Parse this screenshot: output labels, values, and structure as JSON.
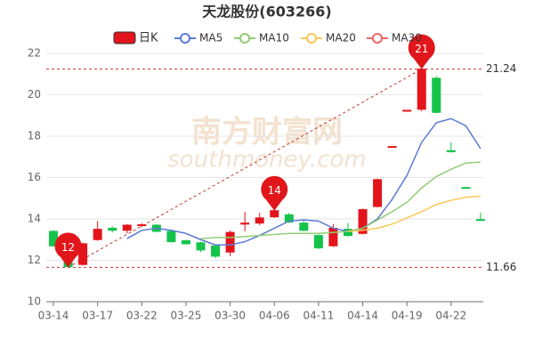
{
  "chart_data": {
    "type": "candlestick",
    "title": "天龙股份(603266)",
    "watermark": "南方财富网",
    "watermark_sub": "southmoney.com",
    "kline_name": "日K",
    "up_color": "#e3141b",
    "down_color": "#14c44a",
    "categories": [
      "03-14",
      null,
      null,
      "03-17",
      null,
      null,
      "03-22",
      null,
      null,
      "03-25",
      null,
      null,
      "03-30",
      null,
      null,
      "04-06",
      null,
      null,
      "04-11",
      null,
      null,
      "04-14",
      null,
      null,
      "04-19",
      null,
      null,
      "04-22",
      null,
      null
    ],
    "open": [
      13.4,
      12.1,
      11.8,
      13.0,
      13.55,
      13.45,
      13.7,
      13.7,
      13.4,
      12.95,
      12.85,
      12.7,
      12.4,
      13.75,
      13.8,
      14.1,
      14.2,
      13.8,
      13.2,
      12.7,
      13.5,
      13.3,
      14.6,
      17.49,
      19.24,
      19.3,
      20.8,
      17.3,
      15.52,
      13.97
    ],
    "high": [
      13.45,
      12.3,
      12.85,
      13.9,
      13.65,
      13.75,
      13.8,
      13.75,
      13.45,
      13.0,
      12.9,
      12.75,
      13.45,
      14.35,
      14.3,
      14.5,
      14.3,
      13.9,
      13.25,
      13.75,
      13.8,
      14.5,
      15.95,
      17.5,
      19.25,
      21.24,
      20.9,
      17.7,
      15.55,
      14.3
    ],
    "low": [
      12.65,
      11.66,
      11.75,
      12.95,
      13.35,
      13.3,
      13.6,
      13.35,
      12.85,
      12.75,
      12.4,
      12.1,
      12.2,
      13.4,
      13.7,
      14.05,
      13.8,
      13.4,
      12.55,
      12.65,
      13.15,
      13.25,
      14.55,
      17.48,
      19.2,
      19.2,
      19.1,
      17.2,
      15.48,
      13.9
    ],
    "close": [
      12.7,
      11.7,
      12.8,
      13.5,
      13.45,
      13.7,
      13.72,
      13.4,
      12.9,
      12.8,
      12.5,
      12.2,
      13.35,
      13.8,
      14.05,
      14.4,
      13.85,
      13.45,
      12.6,
      13.55,
      13.2,
      14.45,
      15.9,
      17.5,
      19.25,
      21.24,
      19.15,
      17.25,
      15.5,
      13.95
    ],
    "series": [
      {
        "name": "MA5",
        "color": "#5b7bd5",
        "values": [
          null,
          null,
          null,
          null,
          null,
          13.05,
          13.45,
          13.55,
          13.45,
          13.3,
          13.0,
          12.75,
          12.75,
          12.9,
          13.2,
          13.55,
          13.9,
          13.95,
          13.9,
          13.55,
          13.4,
          13.55,
          14.0,
          14.95,
          16.1,
          17.7,
          18.65,
          18.85,
          18.5,
          17.4
        ]
      },
      {
        "name": "MA10",
        "color": "#91cc75",
        "values": [
          null,
          null,
          null,
          null,
          null,
          null,
          null,
          null,
          null,
          null,
          13.05,
          13.1,
          13.1,
          13.15,
          13.2,
          13.25,
          13.3,
          13.3,
          13.3,
          13.35,
          13.4,
          13.55,
          13.95,
          14.35,
          14.8,
          15.5,
          16.05,
          16.4,
          16.7,
          16.75
        ]
      },
      {
        "name": "MA20",
        "color": "#fac858",
        "values": [
          null,
          null,
          null,
          null,
          null,
          null,
          null,
          null,
          null,
          null,
          null,
          null,
          null,
          null,
          null,
          null,
          null,
          null,
          null,
          null,
          13.4,
          13.45,
          13.55,
          13.75,
          14.05,
          14.35,
          14.7,
          14.9,
          15.05,
          15.1
        ]
      },
      {
        "name": "MA30",
        "color": "#ee6666",
        "values": [
          null,
          null,
          null,
          null,
          null,
          null,
          null,
          null,
          null,
          null,
          null,
          null,
          null,
          null,
          null,
          null,
          null,
          null,
          null,
          null,
          null,
          null,
          null,
          null,
          null,
          null,
          null,
          null,
          null,
          null
        ]
      }
    ],
    "ylim": [
      10,
      22
    ],
    "yticks": [
      10,
      12,
      14,
      16,
      18,
      20,
      22
    ],
    "grid": true,
    "hlines": [
      21.24,
      11.66
    ],
    "markers": [
      {
        "index": 1,
        "value": 11.66,
        "label": "12"
      },
      {
        "index": 15,
        "value": 14.4,
        "label": "14"
      },
      {
        "index": 25,
        "value": 21.24,
        "label": "21"
      }
    ]
  }
}
